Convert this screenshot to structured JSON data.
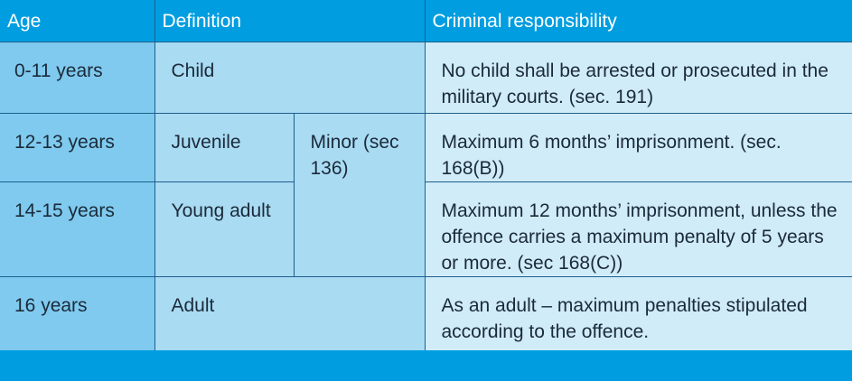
{
  "headers": {
    "age": "Age",
    "definition": "Definition",
    "criminal_responsibility": "Criminal responsibility"
  },
  "rows": [
    {
      "age": "0-11 years",
      "definition": "Child",
      "responsibility": "No child shall be arrested or prosecuted in the military courts. (sec. 191)"
    },
    {
      "age": "12-13 years",
      "definition": "Juvenile",
      "responsibility": "Maximum 6 months’ imprisonment. (sec. 168(B))"
    },
    {
      "age": "14-15 years",
      "definition": "Young adult",
      "responsibility": "Maximum 12 months’ imprisonment, unless the offence carries a maximum penalty of 5 years or more. (sec 168(C))"
    },
    {
      "age": "16 years",
      "definition": "Adult",
      "responsibility": "As an adult – maximum penalties stipulated according to the offence."
    }
  ],
  "minor_group_label": "Minor (sec 136)",
  "colors": {
    "header_bg": "#009ee0",
    "age_col_bg": "#7fcaee",
    "definition_col_bg": "#a9dbf2",
    "responsibility_col_bg": "#d0ecf8",
    "border": "#1e5f8c"
  }
}
